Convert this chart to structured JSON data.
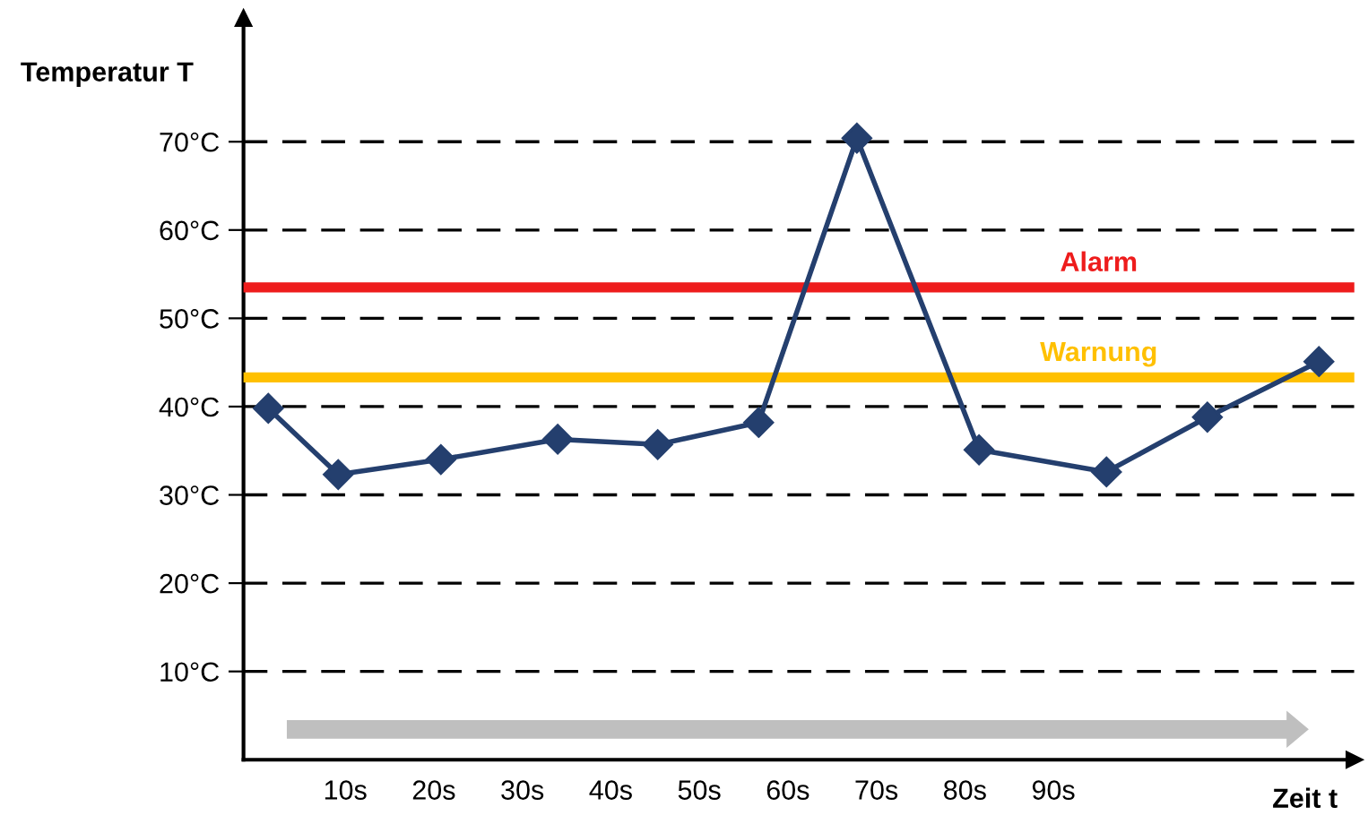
{
  "chart_data": {
    "type": "line",
    "ylabel": "Temperatur T",
    "xlabel": "Zeit t",
    "x": [
      1.3,
      9.2,
      20.8,
      34,
      45.3,
      56.7,
      67.8,
      81.6,
      96,
      107.4,
      120
    ],
    "series": [
      {
        "color": "#243f6e",
        "values": [
          39.8,
          32.3,
          34,
          36.3,
          35.7,
          38.2,
          70.4,
          35.1,
          32.6,
          38.8,
          45.1
        ]
      }
    ],
    "marker": "diamond",
    "line_style": "solid",
    "grid": "y",
    "legend": false,
    "xlim": [
      -1.5,
      124
    ],
    "ylim": [
      0,
      84
    ],
    "xticks": [
      {
        "value": 10,
        "label": "10s"
      },
      {
        "value": 20,
        "label": "20s"
      },
      {
        "value": 30,
        "label": "30s"
      },
      {
        "value": 40,
        "label": "40s"
      },
      {
        "value": 50,
        "label": "50s"
      },
      {
        "value": 60,
        "label": "60s"
      },
      {
        "value": 70,
        "label": "70s"
      },
      {
        "value": 80,
        "label": "80s"
      },
      {
        "value": 90,
        "label": "90s"
      }
    ],
    "yticks": [
      {
        "value": 10,
        "label": "10°C"
      },
      {
        "value": 20,
        "label": "20°C"
      },
      {
        "value": 30,
        "label": "30°C"
      },
      {
        "value": 40,
        "label": "40°C"
      },
      {
        "value": 50,
        "label": "50°C"
      },
      {
        "value": 60,
        "label": "60°C"
      },
      {
        "value": 70,
        "label": "70°C"
      }
    ],
    "ref_lines": [
      {
        "axis": "y",
        "value": 53.5,
        "label": "Alarm",
        "color": "#ee1c1c"
      },
      {
        "axis": "y",
        "value": 43.3,
        "label": "Warnung",
        "color": "#ffc000"
      }
    ]
  }
}
